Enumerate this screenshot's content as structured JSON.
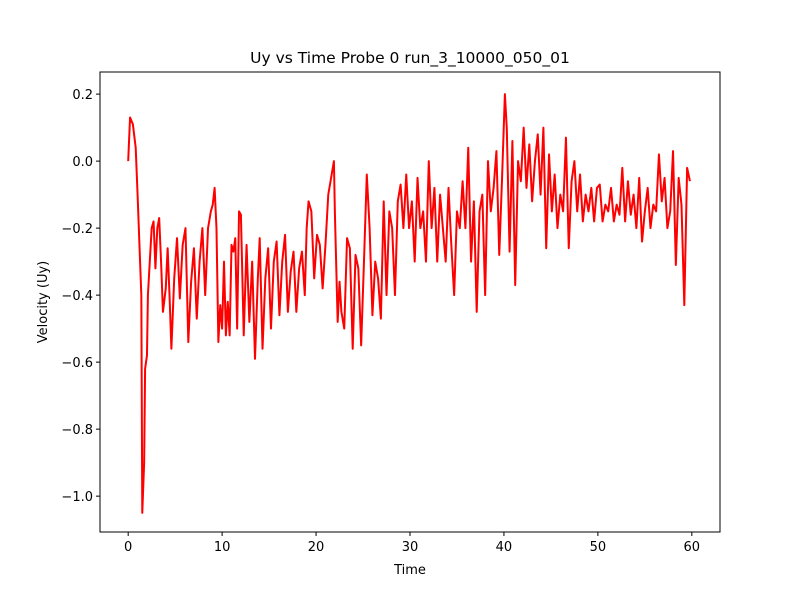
{
  "chart_data": {
    "type": "line",
    "title": "Uy vs Time Probe 0 run_3_10000_050_01",
    "xlabel": "Time",
    "ylabel": "Velocity (Uy)",
    "xlim": [
      -3,
      63
    ],
    "ylim": [
      -1.107,
      0.266
    ],
    "xticks": [
      0,
      10,
      20,
      30,
      40,
      50,
      60
    ],
    "yticks": [
      {
        "value": -1.0,
        "label": "−1.0"
      },
      {
        "value": -0.8,
        "label": "−0.8"
      },
      {
        "value": -0.6,
        "label": "−0.6"
      },
      {
        "value": -0.4,
        "label": "−0.4"
      },
      {
        "value": -0.2,
        "label": "−0.2"
      },
      {
        "value": 0.0,
        "label": "0.0"
      },
      0.2
    ],
    "series": [
      {
        "color": "#ff0000",
        "x": [
          0,
          0.2,
          0.5,
          0.8,
          1.0,
          1.2,
          1.4,
          1.5,
          1.7,
          1.8,
          2.0,
          2.1,
          2.3,
          2.5,
          2.7,
          2.9,
          3.1,
          3.3,
          3.5,
          3.7,
          4.0,
          4.2,
          4.4,
          4.6,
          4.9,
          5.2,
          5.5,
          5.8,
          6.1,
          6.4,
          6.7,
          7.0,
          7.3,
          7.6,
          7.9,
          8.2,
          8.5,
          8.8,
          9.0,
          9.2,
          9.4,
          9.6,
          9.8,
          10.0,
          10.2,
          10.4,
          10.6,
          10.8,
          11.0,
          11.2,
          11.4,
          11.6,
          11.8,
          12.0,
          12.3,
          12.6,
          12.9,
          13.2,
          13.5,
          13.8,
          14.0,
          14.3,
          14.6,
          14.9,
          15.2,
          15.5,
          15.8,
          16.1,
          16.4,
          16.7,
          17.0,
          17.3,
          17.6,
          17.9,
          18.2,
          18.5,
          18.8,
          19.0,
          19.2,
          19.5,
          19.8,
          20.1,
          20.4,
          20.7,
          21.0,
          21.3,
          21.6,
          21.9,
          22.0,
          22.3,
          22.5,
          22.7,
          23.0,
          23.3,
          23.6,
          23.9,
          24.2,
          24.5,
          24.8,
          25.1,
          25.4,
          25.7,
          26.0,
          26.3,
          26.6,
          26.9,
          27.2,
          27.5,
          27.8,
          28.1,
          28.4,
          28.7,
          29.0,
          29.3,
          29.6,
          29.9,
          30.2,
          30.5,
          30.8,
          31.1,
          31.4,
          31.7,
          32.0,
          32.3,
          32.6,
          32.9,
          33.2,
          33.5,
          33.8,
          34.1,
          34.4,
          34.7,
          35.0,
          35.3,
          35.6,
          35.9,
          36.2,
          36.5,
          36.8,
          37.1,
          37.4,
          37.7,
          38.0,
          38.3,
          38.6,
          38.9,
          39.2,
          39.5,
          39.8,
          40.1,
          40.3,
          40.6,
          40.9,
          41.2,
          41.5,
          41.8,
          42.1,
          42.4,
          42.7,
          43.0,
          43.3,
          43.6,
          43.9,
          44.2,
          44.5,
          44.8,
          45.1,
          45.4,
          45.7,
          46.0,
          46.3,
          46.6,
          46.9,
          47.2,
          47.5,
          47.8,
          48.1,
          48.4,
          48.7,
          49.0,
          49.3,
          49.6,
          49.9,
          50.2,
          50.5,
          50.8,
          51.1,
          51.4,
          51.7,
          52.0,
          52.3,
          52.6,
          52.9,
          53.2,
          53.5,
          53.8,
          54.1,
          54.4,
          54.7,
          55.0,
          55.3,
          55.6,
          55.9,
          56.2,
          56.5,
          56.8,
          57.1,
          57.4,
          57.7,
          58.0,
          58.3,
          58.6,
          58.9,
          59.2,
          59.5,
          59.8
        ],
        "values": [
          0,
          0.13,
          0.11,
          0.04,
          -0.1,
          -0.25,
          -0.4,
          -1.05,
          -0.9,
          -0.62,
          -0.58,
          -0.4,
          -0.3,
          -0.2,
          -0.18,
          -0.32,
          -0.2,
          -0.17,
          -0.3,
          -0.45,
          -0.38,
          -0.26,
          -0.4,
          -0.56,
          -0.35,
          -0.23,
          -0.41,
          -0.25,
          -0.2,
          -0.54,
          -0.36,
          -0.26,
          -0.47,
          -0.3,
          -0.2,
          -0.4,
          -0.2,
          -0.15,
          -0.13,
          -0.08,
          -0.2,
          -0.54,
          -0.43,
          -0.5,
          -0.3,
          -0.52,
          -0.42,
          -0.52,
          -0.25,
          -0.27,
          -0.23,
          -0.5,
          -0.15,
          -0.16,
          -0.52,
          -0.25,
          -0.48,
          -0.3,
          -0.59,
          -0.35,
          -0.23,
          -0.56,
          -0.35,
          -0.26,
          -0.5,
          -0.3,
          -0.24,
          -0.46,
          -0.3,
          -0.22,
          -0.45,
          -0.33,
          -0.27,
          -0.45,
          -0.32,
          -0.27,
          -0.4,
          -0.2,
          -0.12,
          -0.15,
          -0.35,
          -0.22,
          -0.25,
          -0.38,
          -0.25,
          -0.1,
          -0.05,
          0.0,
          -0.15,
          -0.48,
          -0.36,
          -0.45,
          -0.5,
          -0.23,
          -0.26,
          -0.56,
          -0.28,
          -0.32,
          -0.55,
          -0.3,
          -0.04,
          -0.2,
          -0.46,
          -0.3,
          -0.35,
          -0.47,
          -0.12,
          -0.4,
          -0.15,
          -0.2,
          -0.4,
          -0.12,
          -0.07,
          -0.2,
          -0.04,
          -0.2,
          -0.12,
          -0.3,
          -0.05,
          -0.2,
          -0.15,
          -0.3,
          0.0,
          -0.2,
          -0.08,
          -0.3,
          -0.1,
          -0.2,
          -0.3,
          -0.08,
          -0.25,
          -0.4,
          -0.15,
          -0.2,
          -0.06,
          -0.2,
          0.04,
          -0.3,
          -0.12,
          -0.45,
          -0.15,
          -0.1,
          -0.4,
          0.0,
          -0.15,
          -0.08,
          0.03,
          -0.28,
          -0.05,
          0.2,
          0.1,
          -0.27,
          0.06,
          -0.37,
          0.0,
          -0.06,
          0.1,
          -0.08,
          0.05,
          -0.12,
          0.0,
          0.08,
          -0.1,
          0.1,
          -0.26,
          0.02,
          -0.15,
          -0.04,
          -0.2,
          -0.1,
          -0.15,
          0.07,
          -0.26,
          -0.06,
          0.0,
          -0.15,
          -0.04,
          -0.18,
          -0.1,
          -0.15,
          -0.08,
          -0.18,
          -0.08,
          -0.07,
          -0.18,
          -0.13,
          -0.15,
          -0.08,
          -0.18,
          -0.13,
          -0.16,
          -0.02,
          -0.18,
          -0.06,
          -0.16,
          -0.1,
          -0.2,
          -0.05,
          -0.24,
          -0.15,
          -0.08,
          -0.2,
          -0.13,
          -0.15,
          0.02,
          -0.12,
          -0.05,
          -0.2,
          -0.15,
          0.03,
          -0.31,
          -0.05,
          -0.13,
          -0.43,
          -0.02,
          -0.06
        ]
      }
    ]
  }
}
